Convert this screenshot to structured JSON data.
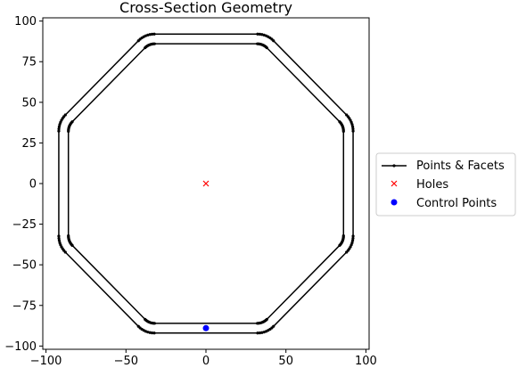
{
  "chart_data": {
    "type": "scatter",
    "title": "Cross-Section Geometry",
    "xlabel": "",
    "ylabel": "",
    "xlim": [
      -102,
      102
    ],
    "ylim": [
      -102,
      102
    ],
    "xticks": [
      -100,
      -50,
      0,
      50,
      100
    ],
    "yticks": [
      100,
      75,
      50,
      25,
      0,
      -25,
      -50,
      -75,
      -100
    ],
    "grid": false,
    "legend_position": "right",
    "geometry": {
      "outer_apothem": 92,
      "inner_apothem": 86,
      "corner_radius": 14,
      "sides": 8
    },
    "series": [
      {
        "name": "Points & Facets",
        "kind": "line",
        "color": "#000000"
      },
      {
        "name": "Holes",
        "kind": "marker",
        "marker": "x",
        "color": "#ff0000",
        "points": [
          [
            0,
            0
          ]
        ]
      },
      {
        "name": "Control Points",
        "kind": "marker",
        "marker": "o",
        "color": "#0000ff",
        "points": [
          [
            0,
            -89
          ]
        ]
      }
    ]
  }
}
